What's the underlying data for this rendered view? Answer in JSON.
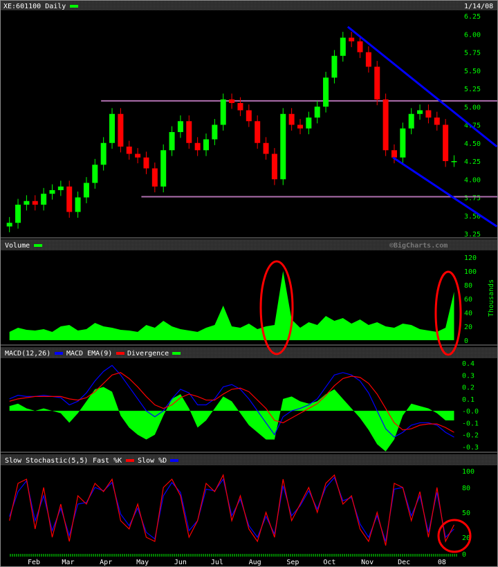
{
  "header": {
    "symbol_title": "XE:601100 Daily",
    "date": "1/14/08"
  },
  "watermark": "©BigCharts.com",
  "colors": {
    "up": "#00ff00",
    "down": "#ff0000",
    "macd": "#0000ff",
    "ema": "#ff0000",
    "divergence": "#00ff00",
    "trend": "#0000ff",
    "support": "#b070b0",
    "circle": "#ff0000",
    "axis_text": "#00ff00",
    "header_bg": "#333333"
  },
  "chart_data": [
    {
      "type": "candlestick",
      "name": "price",
      "title": "XE:601100 Daily",
      "x_start": "2007-01-12",
      "x_step_days": 7,
      "close": [
        3.4,
        3.65,
        3.7,
        3.65,
        3.8,
        3.85,
        3.9,
        3.55,
        3.75,
        3.95,
        4.2,
        4.5,
        4.9,
        4.45,
        4.35,
        4.3,
        4.15,
        3.9,
        4.4,
        4.65,
        4.8,
        4.5,
        4.4,
        4.55,
        4.75,
        5.1,
        5.05,
        4.95,
        4.8,
        4.5,
        4.35,
        4.0,
        4.9,
        4.75,
        4.7,
        4.85,
        5.0,
        5.4,
        5.7,
        5.95,
        5.9,
        5.75,
        5.55,
        5.1,
        4.4,
        4.3,
        4.7,
        4.9,
        4.95,
        4.85,
        4.75,
        4.25,
        4.25
      ],
      "yticks": [
        "6.25",
        "6.00",
        "5.75",
        "5.50",
        "5.25",
        "5.00",
        "4.75",
        "4.50",
        "4.25",
        "4.00",
        "3.75",
        "3.50",
        "3.25"
      ],
      "ylim": [
        3.25,
        6.25
      ],
      "annotations": {
        "support_lines": [
          {
            "price": 5.08,
            "from": "2007-03-28"
          },
          {
            "price": 3.76,
            "from": "2007-04-30"
          }
        ],
        "trend_lines": [
          {
            "from_date": "2007-10-16",
            "from": 6.1,
            "to_date": "2008-02-15",
            "to": 4.45
          },
          {
            "from_date": "2007-11-22",
            "from": 4.3,
            "to_date": "2008-02-15",
            "to": 3.35
          }
        ]
      }
    },
    {
      "type": "area",
      "name": "volume",
      "title": "Volume",
      "ylabel": "Thousands",
      "ylim": [
        0,
        120
      ],
      "yticks": [
        "120",
        "100",
        "80",
        "60",
        "40",
        "20",
        "0"
      ],
      "values": [
        12,
        18,
        15,
        14,
        16,
        12,
        20,
        22,
        14,
        16,
        25,
        20,
        18,
        15,
        14,
        12,
        22,
        18,
        28,
        20,
        16,
        14,
        12,
        18,
        22,
        50,
        20,
        18,
        24,
        16,
        20,
        22,
        100,
        30,
        18,
        26,
        22,
        35,
        28,
        32,
        24,
        30,
        22,
        26,
        20,
        18,
        24,
        22,
        16,
        14,
        12,
        18,
        70
      ]
    },
    {
      "type": "line",
      "name": "macd",
      "title": "MACD(12,26)",
      "legend": [
        "MACD",
        "EMA(9)",
        "Divergence"
      ],
      "ylim": [
        -0.3,
        0.4
      ],
      "yticks": [
        "0.4",
        "0.3",
        "0.2",
        "0.1",
        "-0.0",
        "-0.1",
        "-0.2",
        "-0.3"
      ],
      "macd": [
        0.1,
        0.13,
        0.12,
        0.12,
        0.13,
        0.12,
        0.11,
        0.05,
        0.08,
        0.15,
        0.25,
        0.33,
        0.38,
        0.3,
        0.2,
        0.1,
        0.0,
        -0.05,
        0.0,
        0.1,
        0.18,
        0.15,
        0.05,
        0.05,
        0.1,
        0.2,
        0.22,
        0.18,
        0.1,
        0.0,
        -0.1,
        -0.2,
        -0.05,
        0.0,
        0.02,
        0.05,
        0.1,
        0.2,
        0.3,
        0.32,
        0.3,
        0.25,
        0.15,
        0.0,
        -0.15,
        -0.22,
        -0.18,
        -0.12,
        -0.1,
        -0.1,
        -0.12,
        -0.18,
        -0.22
      ],
      "ema": [
        0.08,
        0.1,
        0.11,
        0.12,
        0.12,
        0.12,
        0.12,
        0.1,
        0.09,
        0.11,
        0.16,
        0.23,
        0.3,
        0.32,
        0.27,
        0.2,
        0.12,
        0.05,
        0.02,
        0.05,
        0.11,
        0.14,
        0.12,
        0.09,
        0.09,
        0.14,
        0.18,
        0.19,
        0.16,
        0.09,
        0.02,
        -0.08,
        -0.1,
        -0.06,
        -0.02,
        0.02,
        0.06,
        0.13,
        0.21,
        0.27,
        0.29,
        0.28,
        0.23,
        0.14,
        0.02,
        -0.1,
        -0.16,
        -0.15,
        -0.12,
        -0.11,
        -0.11,
        -0.14,
        -0.18
      ]
    },
    {
      "type": "line",
      "name": "stochastic",
      "title": "Slow Stochastic(5,5)",
      "legend": [
        "Fast %K",
        "Slow %D"
      ],
      "ylim": [
        0,
        100
      ],
      "yticks": [
        "100",
        "80",
        "50",
        "20",
        "0"
      ],
      "k": [
        40,
        85,
        90,
        30,
        80,
        20,
        60,
        15,
        70,
        60,
        85,
        75,
        90,
        40,
        30,
        60,
        20,
        15,
        80,
        90,
        70,
        20,
        40,
        85,
        75,
        95,
        40,
        70,
        30,
        15,
        50,
        20,
        90,
        40,
        60,
        80,
        50,
        85,
        95,
        60,
        70,
        30,
        15,
        50,
        10,
        85,
        80,
        40,
        75,
        20,
        80,
        15,
        35
      ],
      "d": [
        45,
        75,
        88,
        40,
        70,
        28,
        55,
        22,
        60,
        62,
        80,
        76,
        86,
        48,
        34,
        55,
        26,
        18,
        70,
        86,
        74,
        28,
        40,
        78,
        76,
        90,
        46,
        66,
        34,
        20,
        45,
        24,
        82,
        46,
        58,
        76,
        54,
        80,
        92,
        64,
        68,
        36,
        20,
        46,
        15,
        78,
        80,
        46,
        70,
        26,
        74,
        20,
        30
      ]
    }
  ],
  "x_axis": {
    "labels": [
      {
        "label": "Feb",
        "date": "2007-02-01"
      },
      {
        "label": "Mar",
        "date": "2007-03-01"
      },
      {
        "label": "Apr",
        "date": "2007-04-01"
      },
      {
        "label": "May",
        "date": "2007-05-01"
      },
      {
        "label": "Jun",
        "date": "2007-06-01"
      },
      {
        "label": "Jul",
        "date": "2007-07-01"
      },
      {
        "label": "Aug",
        "date": "2007-08-01"
      },
      {
        "label": "Sep",
        "date": "2007-09-01"
      },
      {
        "label": "Oct",
        "date": "2007-10-01"
      },
      {
        "label": "Nov",
        "date": "2007-11-01"
      },
      {
        "label": "Dec",
        "date": "2007-12-01"
      },
      {
        "label": "08",
        "date": "2008-01-01"
      }
    ]
  }
}
